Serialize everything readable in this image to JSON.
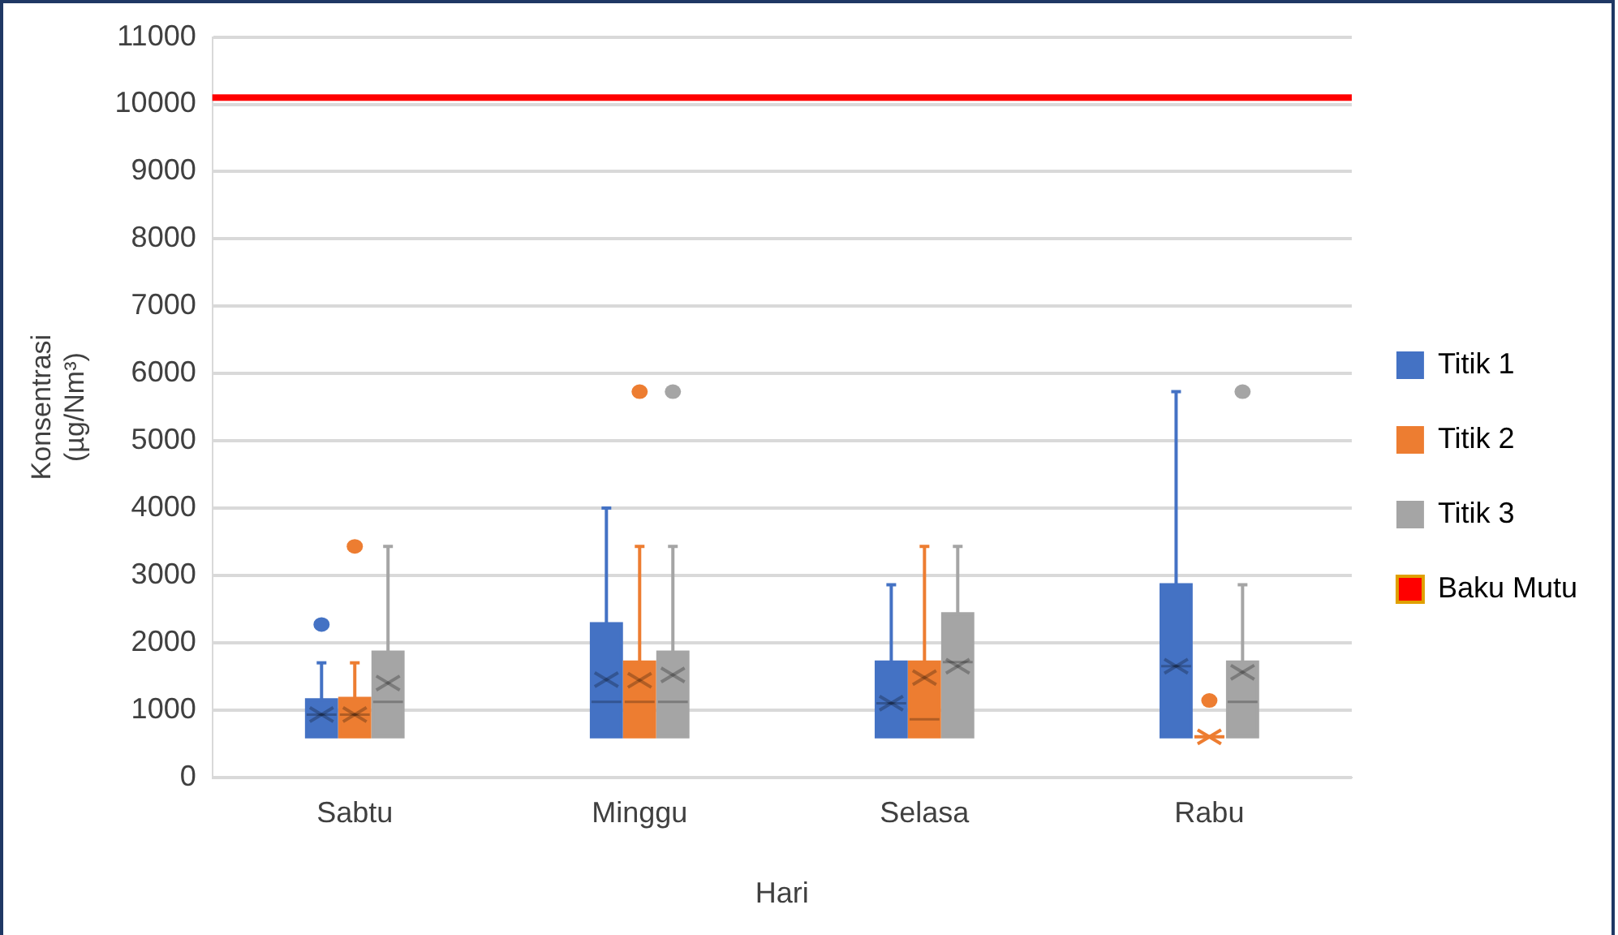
{
  "chart_data": {
    "type": "box",
    "xlabel": "Hari",
    "ylabel": "Konsentrasi\n(µg/Nm³)",
    "categories": [
      "Sabtu",
      "Minggu",
      "Selasa",
      "Rabu"
    ],
    "ylim": [
      0,
      11000
    ],
    "yticks": [
      0,
      1000,
      2000,
      3000,
      4000,
      5000,
      6000,
      7000,
      8000,
      9000,
      10000,
      11000
    ],
    "grid": "y",
    "legend": "right",
    "series": [
      {
        "name": "Titik 1",
        "color": "#4472c4",
        "boxes": [
          {
            "low": 600,
            "q1": 600,
            "median": 930,
            "q3": 1150,
            "high": 1700,
            "mean": 930,
            "outliers": [
              2270
            ]
          },
          {
            "low": 600,
            "q1": 600,
            "median": 1120,
            "q3": 2280,
            "high": 4000,
            "mean": 1450
          },
          {
            "low": 600,
            "q1": 600,
            "median": 1100,
            "q3": 1710,
            "high": 2860,
            "mean": 1100
          },
          {
            "low": 600,
            "q1": 600,
            "median": 1650,
            "q3": 2860,
            "high": 5730,
            "mean": 1650
          }
        ]
      },
      {
        "name": "Titik 2",
        "color": "#ed7d31",
        "boxes": [
          {
            "low": 600,
            "q1": 600,
            "median": 930,
            "q3": 1170,
            "high": 1700,
            "mean": 930,
            "outliers": [
              3430
            ]
          },
          {
            "low": 600,
            "q1": 600,
            "median": 1120,
            "q3": 1710,
            "high": 3430,
            "mean": 1440,
            "outliers": [
              5730
            ]
          },
          {
            "low": 600,
            "q1": 600,
            "median": 860,
            "q3": 1710,
            "high": 3430,
            "mean": 1480
          },
          {
            "low": 600,
            "q1": 600,
            "median": 600,
            "q3": 600,
            "high": 600,
            "mean": 600,
            "outliers": [
              1140
            ]
          }
        ]
      },
      {
        "name": "Titik 3",
        "color": "#a5a5a5",
        "boxes": [
          {
            "low": 600,
            "q1": 600,
            "median": 1120,
            "q3": 1860,
            "high": 3430,
            "mean": 1400
          },
          {
            "low": 600,
            "q1": 600,
            "median": 1120,
            "q3": 1860,
            "high": 3430,
            "mean": 1520,
            "outliers": [
              5730
            ]
          },
          {
            "low": 600,
            "q1": 600,
            "median": 1710,
            "q3": 2430,
            "high": 3430,
            "mean": 1650
          },
          {
            "low": 600,
            "q1": 600,
            "median": 1120,
            "q3": 1710,
            "high": 2860,
            "mean": 1560,
            "outliers": [
              5730
            ]
          }
        ]
      }
    ],
    "ref_lines": [
      {
        "axis": "y",
        "value": 10100,
        "label": "Baku Mutu",
        "color": "#ff0000"
      }
    ]
  }
}
